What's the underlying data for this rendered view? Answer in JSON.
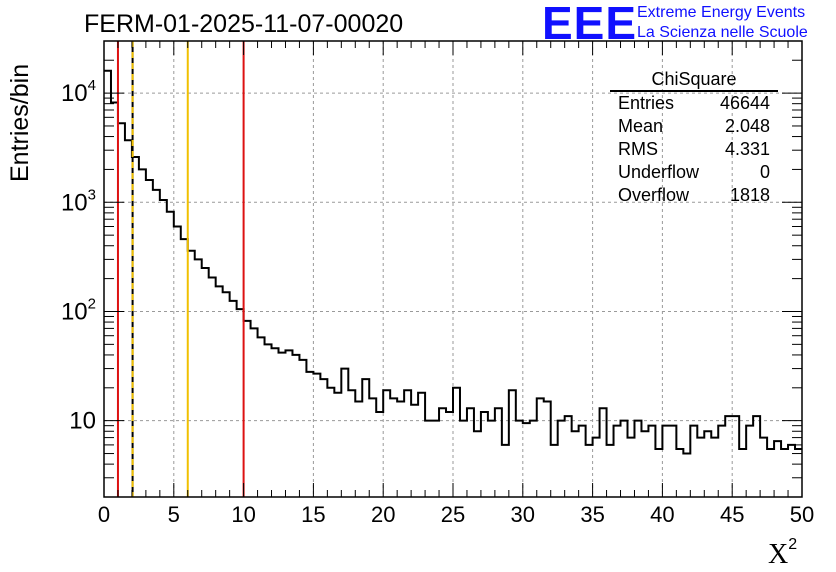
{
  "title": "FERM-01-2025-11-07-00020",
  "logo": {
    "mark": "EEE",
    "line1": "Extreme Energy Events",
    "line2": "La Scienza nelle Scuole"
  },
  "colors": {
    "brand": "#1010ff",
    "cut_red": "#dd1111",
    "cut_yellow": "#f0c000",
    "grid": "#9a9a9a",
    "histogram": "#000000"
  },
  "stats_box": {
    "title": "ChiSquare",
    "rows": [
      {
        "label": "Entries",
        "value": "46644"
      },
      {
        "label": "Mean",
        "value": "2.048"
      },
      {
        "label": "RMS",
        "value": "4.331"
      },
      {
        "label": "Underflow",
        "value": "0"
      },
      {
        "label": "Overflow",
        "value": "1818"
      }
    ]
  },
  "chart_data": {
    "type": "histogram",
    "title": "FERM-01-2025-11-07-00020",
    "xlabel": "X",
    "xlabel_superscript": "2",
    "ylabel": "Entries/bin",
    "xlim": [
      0,
      50
    ],
    "ylim": [
      2,
      30000
    ],
    "yscale": "log",
    "grid": true,
    "bin_width": 0.5,
    "x_ticks": [
      "0",
      "5",
      "10",
      "15",
      "20",
      "25",
      "30",
      "35",
      "40",
      "45",
      "50"
    ],
    "y_ticks": [
      {
        "value": 10,
        "base": "10",
        "exp": ""
      },
      {
        "value": 100,
        "base": "10",
        "exp": "2"
      },
      {
        "value": 1000,
        "base": "10",
        "exp": "3"
      },
      {
        "value": 10000,
        "base": "10",
        "exp": "4"
      }
    ],
    "counts": [
      16000,
      8200,
      5300,
      3700,
      2600,
      2000,
      1600,
      1300,
      1050,
      820,
      600,
      460,
      360,
      300,
      250,
      205,
      170,
      150,
      125,
      105,
      82,
      70,
      58,
      50,
      46,
      42,
      44,
      40,
      36,
      28,
      27,
      24,
      20,
      18,
      30,
      19,
      15,
      24,
      16,
      12,
      19,
      16,
      15,
      19,
      14,
      18,
      10,
      10,
      13,
      12,
      20,
      10,
      13,
      8,
      12,
      10,
      13,
      6,
      19,
      10,
      9.5,
      10,
      16,
      15,
      6,
      10,
      11,
      8,
      9,
      6,
      7,
      13,
      6,
      9,
      10,
      7,
      10,
      8,
      9,
      5.5,
      9,
      9,
      5.5,
      5,
      9,
      7,
      8,
      7,
      9,
      11,
      11,
      5.5,
      9,
      11,
      7,
      5.5,
      6.5,
      5.5,
      6,
      5.5
    ],
    "vertical_lines": [
      {
        "x": 1.0,
        "color": "red",
        "style": "solid"
      },
      {
        "x": 2.048,
        "color": "black",
        "style": "solid"
      },
      {
        "x": 2.048,
        "color": "yellow",
        "style": "dashed"
      },
      {
        "x": 6.0,
        "color": "yellow",
        "style": "solid"
      },
      {
        "x": 10.0,
        "color": "red",
        "style": "solid"
      }
    ]
  }
}
